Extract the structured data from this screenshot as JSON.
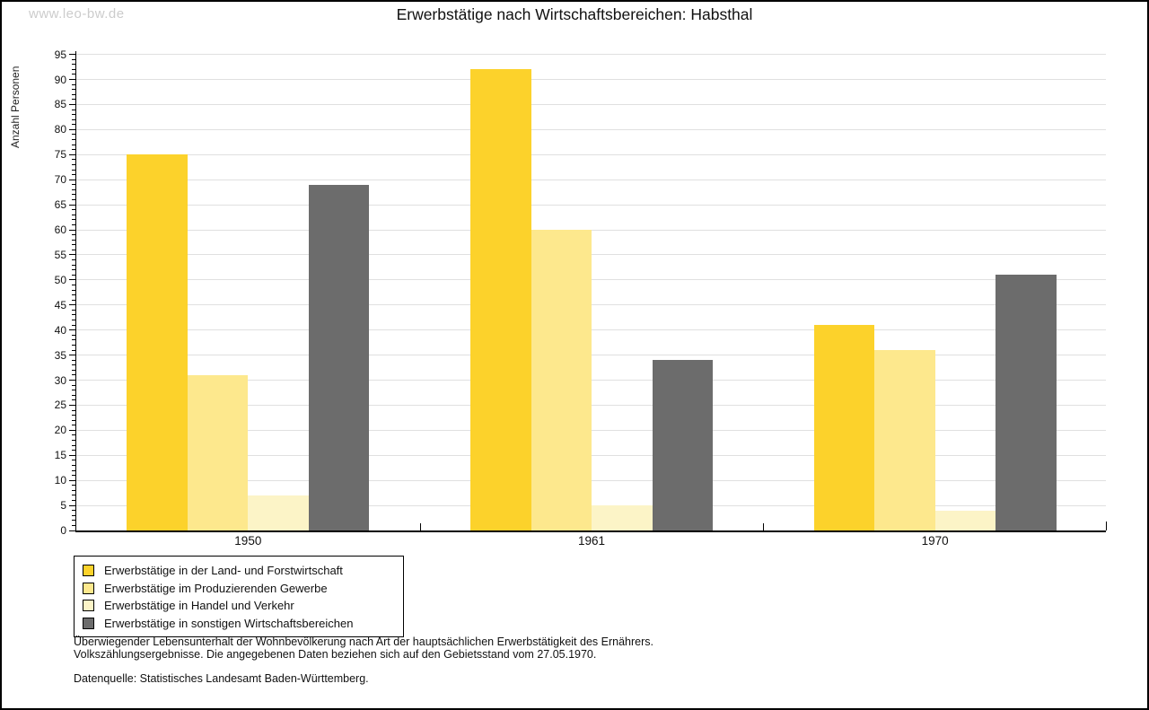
{
  "header": {
    "watermark": "www.leo-bw.de",
    "title": "Erwerbstätige nach Wirtschaftsbereichen: Habsthal"
  },
  "chart_data": {
    "type": "bar",
    "title": "Erwerbstätige nach Wirtschaftsbereichen: Habsthal",
    "ylabel": "Anzahl Personen",
    "xlabel": "",
    "categories": [
      "1950",
      "1961",
      "1970"
    ],
    "series": [
      {
        "name": "Erwerbstätige in der Land- und Forstwirtschaft",
        "color": "#FCD22B",
        "values": [
          75,
          92,
          41
        ]
      },
      {
        "name": "Erwerbstätige im Produzierenden Gewerbe",
        "color": "#FDE88D",
        "values": [
          31,
          60,
          36
        ]
      },
      {
        "name": "Erwerbstätige in Handel und Verkehr",
        "color": "#FCF4C7",
        "values": [
          7,
          5,
          4
        ]
      },
      {
        "name": "Erwerbstätige in sonstigen Wirtschaftsbereichen",
        "color": "#6C6C6C",
        "values": [
          69,
          34,
          51
        ]
      }
    ],
    "ylim": [
      0,
      95
    ],
    "ytick_step": 5,
    "minor_tick_step": 1,
    "grid": true,
    "gridline_color": "#e0e0e0",
    "legend_position": "bottom-left"
  },
  "footnotes": {
    "line1": "Überwiegender Lebensunterhalt der Wohnbevölkerung nach Art der hauptsächlichen Erwerbstätigkeit des Ernährers.",
    "line2": "Volkszählungsergebnisse. Die angegebenen Daten beziehen sich auf den Gebietsstand vom 27.05.1970.",
    "source": "Datenquelle: Statistisches Landesamt Baden-Württemberg."
  }
}
